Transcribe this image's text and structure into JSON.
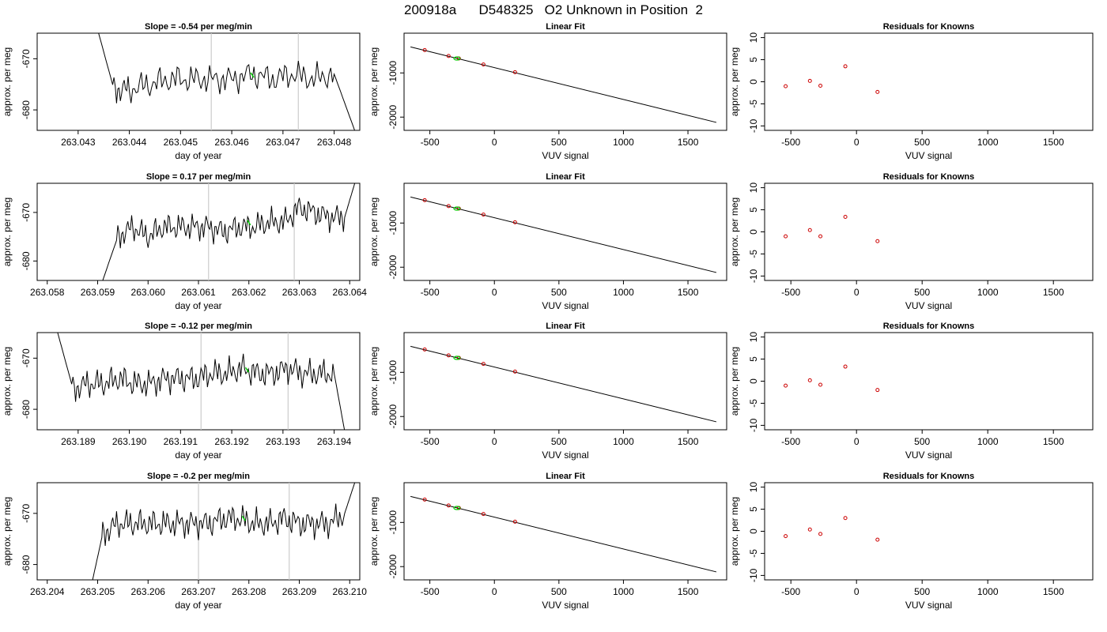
{
  "page": {
    "title": "200918a      D548325   O2 Unknown in Position  2"
  },
  "colors": {
    "line": "#000000",
    "known_point": "#cc0000",
    "unknown_point": "#00cc00",
    "event_line": "#cccccc",
    "axis": "#000000"
  },
  "chart_data": [
    {
      "type": "line",
      "row": 1,
      "panel": "timeseries",
      "title": "Slope =  -0.54  per meg/min",
      "xlabel": "day of year",
      "ylabel": "approx. per meg",
      "xlim": [
        263.0422,
        263.0485
      ],
      "ylim": [
        -684,
        -665
      ],
      "xticks": [
        "263.043",
        "263.044",
        "263.045",
        "263.046",
        "263.047",
        "263.048"
      ],
      "yticks": [
        "-680",
        "-670"
      ],
      "ytick_values": [
        -680,
        -670
      ],
      "event_lines": [
        263.0456,
        263.0473
      ],
      "unknown_point": {
        "x": 263.0464,
        "y": -673.2
      },
      "series": [
        {
          "x": [
            263.0434,
            263.0437,
            263.044,
            263.0444,
            263.0448,
            263.0452,
            263.0456,
            263.046,
            263.0464,
            263.0468,
            263.0472,
            263.0476,
            263.048,
            263.0484
          ],
          "y": [
            -665,
            -676,
            -676,
            -675,
            -674,
            -674,
            -674,
            -674,
            -673,
            -674,
            -673,
            -674,
            -673,
            -684
          ]
        }
      ]
    },
    {
      "type": "line",
      "row": 1,
      "panel": "linear_fit",
      "title": "Linear Fit",
      "xlabel": "VUV signal",
      "ylabel": "approx. per meg",
      "xlim": [
        -700,
        1800
      ],
      "ylim": [
        -2300,
        -100
      ],
      "xticks": [
        "-500",
        "0",
        "500",
        "1000",
        "1500"
      ],
      "xtick_values": [
        -500,
        0,
        500,
        1000,
        1500
      ],
      "yticks": [
        "-2000",
        "-1000"
      ],
      "ytick_values": [
        -2000,
        -1000
      ],
      "fit": {
        "x": [
          -650,
          1720
        ],
        "y": [
          -410,
          -2120
        ]
      },
      "knowns": {
        "x": [
          -540,
          -355,
          -275,
          -85,
          160
        ],
        "y": [
          -482,
          -616,
          -673,
          -809,
          -983
        ]
      },
      "unknown": {
        "x": -290,
        "y": -673
      }
    },
    {
      "type": "scatter",
      "row": 1,
      "panel": "residuals",
      "title": "Residuals for Knowns",
      "xlabel": "VUV signal",
      "ylabel": "approx. per meg",
      "xlim": [
        -700,
        1800
      ],
      "ylim": [
        -11,
        11
      ],
      "xticks": [
        "-500",
        "0",
        "500",
        "1000",
        "1500"
      ],
      "xtick_values": [
        -500,
        0,
        500,
        1000,
        1500
      ],
      "yticks": [
        "-10",
        "-5",
        "0",
        "5",
        "10"
      ],
      "ytick_values": [
        -10,
        -5,
        0,
        5,
        10
      ],
      "points": {
        "x": [
          -540,
          -355,
          -275,
          -85,
          160
        ],
        "y": [
          -1.0,
          0.2,
          -0.9,
          3.5,
          -2.3
        ]
      }
    },
    {
      "type": "line",
      "row": 2,
      "panel": "timeseries",
      "title": "Slope =  0.17  per meg/min",
      "xlabel": "day of year",
      "ylabel": "approx. per meg",
      "xlim": [
        263.0578,
        263.0642
      ],
      "ylim": [
        -684,
        -664
      ],
      "xticks": [
        "263.058",
        "263.059",
        "263.060",
        "263.061",
        "263.062",
        "263.063",
        "263.064"
      ],
      "yticks": [
        "-680",
        "-670"
      ],
      "ytick_values": [
        -680,
        -670
      ],
      "event_lines": [
        263.0612,
        263.0629
      ],
      "unknown_point": {
        "x": 263.062,
        "y": -672.1
      },
      "series": [
        {
          "x": [
            263.0591,
            263.0594,
            263.0597,
            263.06,
            263.0603,
            263.0606,
            263.0609,
            263.0612,
            263.0615,
            263.0618,
            263.0621,
            263.0624,
            263.0627,
            263.063,
            263.0633,
            263.0636,
            263.0639,
            263.0641
          ],
          "y": [
            -684,
            -675,
            -673,
            -675,
            -673,
            -673,
            -673,
            -673,
            -674,
            -673,
            -673,
            -672,
            -672,
            -669,
            -670,
            -671,
            -671,
            -664
          ]
        }
      ]
    },
    {
      "type": "line",
      "row": 2,
      "panel": "linear_fit",
      "title": "Linear Fit",
      "xlabel": "VUV signal",
      "ylabel": "approx. per meg",
      "xlim": [
        -700,
        1800
      ],
      "ylim": [
        -2300,
        -100
      ],
      "xticks": [
        "-500",
        "0",
        "500",
        "1000",
        "1500"
      ],
      "xtick_values": [
        -500,
        0,
        500,
        1000,
        1500
      ],
      "yticks": [
        "-2000",
        "-1000"
      ],
      "ytick_values": [
        -2000,
        -1000
      ],
      "fit": {
        "x": [
          -650,
          1720
        ],
        "y": [
          -410,
          -2120
        ]
      },
      "knowns": {
        "x": [
          -540,
          -355,
          -275,
          -85,
          160
        ],
        "y": [
          -482,
          -616,
          -673,
          -809,
          -983
        ]
      },
      "unknown": {
        "x": -290,
        "y": -673
      }
    },
    {
      "type": "scatter",
      "row": 2,
      "panel": "residuals",
      "title": "Residuals for Knowns",
      "xlabel": "VUV signal",
      "ylabel": "approx. per meg",
      "xlim": [
        -700,
        1800
      ],
      "ylim": [
        -11,
        11
      ],
      "xticks": [
        "-500",
        "0",
        "500",
        "1000",
        "1500"
      ],
      "xtick_values": [
        -500,
        0,
        500,
        1000,
        1500
      ],
      "yticks": [
        "-10",
        "-5",
        "0",
        "5",
        "10"
      ],
      "ytick_values": [
        -10,
        -5,
        0,
        5,
        10
      ],
      "points": {
        "x": [
          -540,
          -355,
          -275,
          -85,
          160
        ],
        "y": [
          -1.0,
          0.4,
          -1.0,
          3.4,
          -2.1
        ]
      }
    },
    {
      "type": "line",
      "row": 3,
      "panel": "timeseries",
      "title": "Slope =  -0.12  per meg/min",
      "xlabel": "day of year",
      "ylabel": "approx. per meg",
      "xlim": [
        263.1882,
        263.1945
      ],
      "ylim": [
        -684,
        -665
      ],
      "xticks": [
        "263.189",
        "263.190",
        "263.191",
        "263.192",
        "263.193",
        "263.194"
      ],
      "yticks": [
        "-680",
        "-670"
      ],
      "ytick_values": [
        -680,
        -670
      ],
      "event_lines": [
        263.1914,
        263.1931
      ],
      "unknown_point": {
        "x": 263.1923,
        "y": -672.3
      },
      "series": [
        {
          "x": [
            263.1886,
            263.1889,
            263.1892,
            263.1895,
            263.1898,
            263.1901,
            263.1904,
            263.1907,
            263.191,
            263.1913,
            263.1916,
            263.1919,
            263.1922,
            263.1925,
            263.1928,
            263.1931,
            263.1934,
            263.1937,
            263.194,
            263.1942
          ],
          "y": [
            -665,
            -676,
            -675,
            -675,
            -674,
            -675,
            -675,
            -674,
            -674,
            -674,
            -673,
            -673,
            -672,
            -673,
            -673,
            -672,
            -673,
            -673,
            -673,
            -684
          ]
        }
      ]
    },
    {
      "type": "line",
      "row": 3,
      "panel": "linear_fit",
      "title": "Linear Fit",
      "xlabel": "VUV signal",
      "ylabel": "approx. per meg",
      "xlim": [
        -700,
        1800
      ],
      "ylim": [
        -2300,
        -100
      ],
      "xticks": [
        "-500",
        "0",
        "500",
        "1000",
        "1500"
      ],
      "xtick_values": [
        -500,
        0,
        500,
        1000,
        1500
      ],
      "yticks": [
        "-2000",
        "-1000"
      ],
      "ytick_values": [
        -2000,
        -1000
      ],
      "fit": {
        "x": [
          -650,
          1720
        ],
        "y": [
          -410,
          -2120
        ]
      },
      "knowns": {
        "x": [
          -540,
          -355,
          -275,
          -85,
          160
        ],
        "y": [
          -482,
          -616,
          -673,
          -809,
          -983
        ]
      },
      "unknown": {
        "x": -290,
        "y": -673
      }
    },
    {
      "type": "scatter",
      "row": 3,
      "panel": "residuals",
      "title": "Residuals for Knowns",
      "xlabel": "VUV signal",
      "ylabel": "approx. per meg",
      "xlim": [
        -700,
        1800
      ],
      "ylim": [
        -11,
        11
      ],
      "xticks": [
        "-500",
        "0",
        "500",
        "1000",
        "1500"
      ],
      "xtick_values": [
        -500,
        0,
        500,
        1000,
        1500
      ],
      "yticks": [
        "-10",
        "-5",
        "0",
        "5",
        "10"
      ],
      "ytick_values": [
        -10,
        -5,
        0,
        5,
        10
      ],
      "points": {
        "x": [
          -540,
          -355,
          -275,
          -85,
          160
        ],
        "y": [
          -1.0,
          0.2,
          -0.8,
          3.3,
          -2.0
        ]
      }
    },
    {
      "type": "line",
      "row": 4,
      "panel": "timeseries",
      "title": "Slope =  -0.2  per meg/min",
      "xlabel": "day of year",
      "ylabel": "approx. per meg",
      "xlim": [
        263.2038,
        263.2102
      ],
      "ylim": [
        -683,
        -664
      ],
      "xticks": [
        "263.204",
        "263.205",
        "263.206",
        "263.207",
        "263.208",
        "263.209",
        "263.210"
      ],
      "yticks": [
        "-680",
        "-670"
      ],
      "ytick_values": [
        -680,
        -670
      ],
      "event_lines": [
        263.207,
        263.2088
      ],
      "unknown_point": {
        "x": 263.2079,
        "y": -671.0
      },
      "series": [
        {
          "x": [
            263.2049,
            263.2051,
            263.2054,
            263.2057,
            263.206,
            263.2063,
            263.2066,
            263.2069,
            263.2072,
            263.2075,
            263.2078,
            263.2081,
            263.2084,
            263.2087,
            263.209,
            263.2093,
            263.2096,
            263.2099,
            263.2101
          ],
          "y": [
            -683,
            -674,
            -672,
            -672,
            -672,
            -672,
            -672,
            -672,
            -672,
            -671,
            -671,
            -672,
            -672,
            -671,
            -672,
            -672,
            -672,
            -670,
            -664
          ]
        }
      ]
    },
    {
      "type": "line",
      "row": 4,
      "panel": "linear_fit",
      "title": "Linear Fit",
      "xlabel": "VUV signal",
      "ylabel": "approx. per meg",
      "xlim": [
        -700,
        1800
      ],
      "ylim": [
        -2300,
        -100
      ],
      "xticks": [
        "-500",
        "0",
        "500",
        "1000",
        "1500"
      ],
      "xtick_values": [
        -500,
        0,
        500,
        1000,
        1500
      ],
      "yticks": [
        "-2000",
        "-1000"
      ],
      "ytick_values": [
        -2000,
        -1000
      ],
      "fit": {
        "x": [
          -650,
          1720
        ],
        "y": [
          -410,
          -2120
        ]
      },
      "knowns": {
        "x": [
          -540,
          -355,
          -275,
          -85,
          160
        ],
        "y": [
          -482,
          -616,
          -673,
          -809,
          -983
        ]
      },
      "unknown": {
        "x": -290,
        "y": -673
      }
    },
    {
      "type": "scatter",
      "row": 4,
      "panel": "residuals",
      "title": "Residuals for Knowns",
      "xlabel": "VUV signal",
      "ylabel": "approx. per meg",
      "xlim": [
        -700,
        1800
      ],
      "ylim": [
        -11,
        11
      ],
      "xticks": [
        "-500",
        "0",
        "500",
        "1000",
        "1500"
      ],
      "xtick_values": [
        -500,
        0,
        500,
        1000,
        1500
      ],
      "yticks": [
        "-10",
        "-5",
        "0",
        "5",
        "10"
      ],
      "ytick_values": [
        -10,
        -5,
        0,
        5,
        10
      ],
      "points": {
        "x": [
          -540,
          -355,
          -275,
          -85,
          160
        ],
        "y": [
          -1.1,
          0.4,
          -0.6,
          3.0,
          -1.9
        ]
      }
    }
  ]
}
